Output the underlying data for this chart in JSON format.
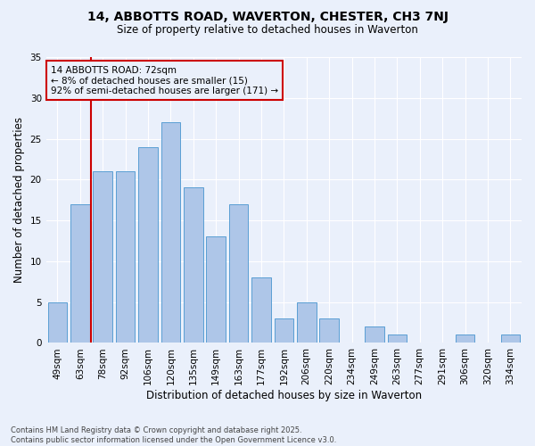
{
  "title_line1": "14, ABBOTTS ROAD, WAVERTON, CHESTER, CH3 7NJ",
  "title_line2": "Size of property relative to detached houses in Waverton",
  "xlabel": "Distribution of detached houses by size in Waverton",
  "ylabel": "Number of detached properties",
  "bar_labels": [
    "49sqm",
    "63sqm",
    "78sqm",
    "92sqm",
    "106sqm",
    "120sqm",
    "135sqm",
    "149sqm",
    "163sqm",
    "177sqm",
    "192sqm",
    "206sqm",
    "220sqm",
    "234sqm",
    "249sqm",
    "263sqm",
    "277sqm",
    "291sqm",
    "306sqm",
    "320sqm",
    "334sqm"
  ],
  "bar_values": [
    5,
    17,
    21,
    21,
    24,
    27,
    19,
    13,
    17,
    8,
    3,
    5,
    3,
    0,
    2,
    1,
    0,
    0,
    1,
    0,
    1
  ],
  "bar_color": "#aec6e8",
  "bar_edge_color": "#5a9fd4",
  "vline_bar_index": 1,
  "vline_color": "#cc0000",
  "annotation_text": "14 ABBOTTS ROAD: 72sqm\n← 8% of detached houses are smaller (15)\n92% of semi-detached houses are larger (171) →",
  "annotation_box_color": "#cc0000",
  "ylim": [
    0,
    35
  ],
  "yticks": [
    0,
    5,
    10,
    15,
    20,
    25,
    30,
    35
  ],
  "background_color": "#eaf0fb",
  "grid_color": "#ffffff",
  "footnote": "Contains HM Land Registry data © Crown copyright and database right 2025.\nContains public sector information licensed under the Open Government Licence v3.0."
}
